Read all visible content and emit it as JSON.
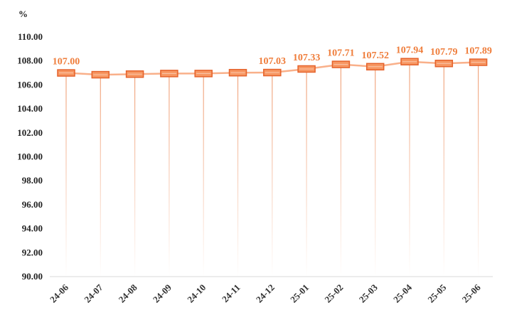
{
  "chart_data": {
    "type": "line",
    "ylabel": "%",
    "ylim": [
      90,
      110
    ],
    "yticks": [
      "90.00",
      "92.00",
      "94.00",
      "96.00",
      "98.00",
      "100.00",
      "102.00",
      "104.00",
      "106.00",
      "108.00",
      "110.00"
    ],
    "categories": [
      "24-06",
      "24-07",
      "24-08",
      "24-09",
      "24-10",
      "24-11",
      "24-12",
      "25-01",
      "25-02",
      "25-03",
      "25-04",
      "25-05",
      "25-06"
    ],
    "values": [
      107.0,
      106.85,
      106.9,
      106.95,
      106.95,
      107.02,
      107.03,
      107.33,
      107.71,
      107.52,
      107.94,
      107.79,
      107.89
    ],
    "data_labels": [
      "107.00",
      "",
      "",
      "",
      "",
      "",
      "107.03",
      "107.33",
      "107.71",
      "107.52",
      "107.94",
      "107.79",
      "107.89"
    ],
    "grid": false,
    "colors": {
      "line": "#f9b08a",
      "marker_fill": "#f79763",
      "marker_stroke": "#e5622b",
      "drop_line": "#f0a27a",
      "label": "#ef7d3b",
      "axis": "#d9d9d9"
    }
  }
}
